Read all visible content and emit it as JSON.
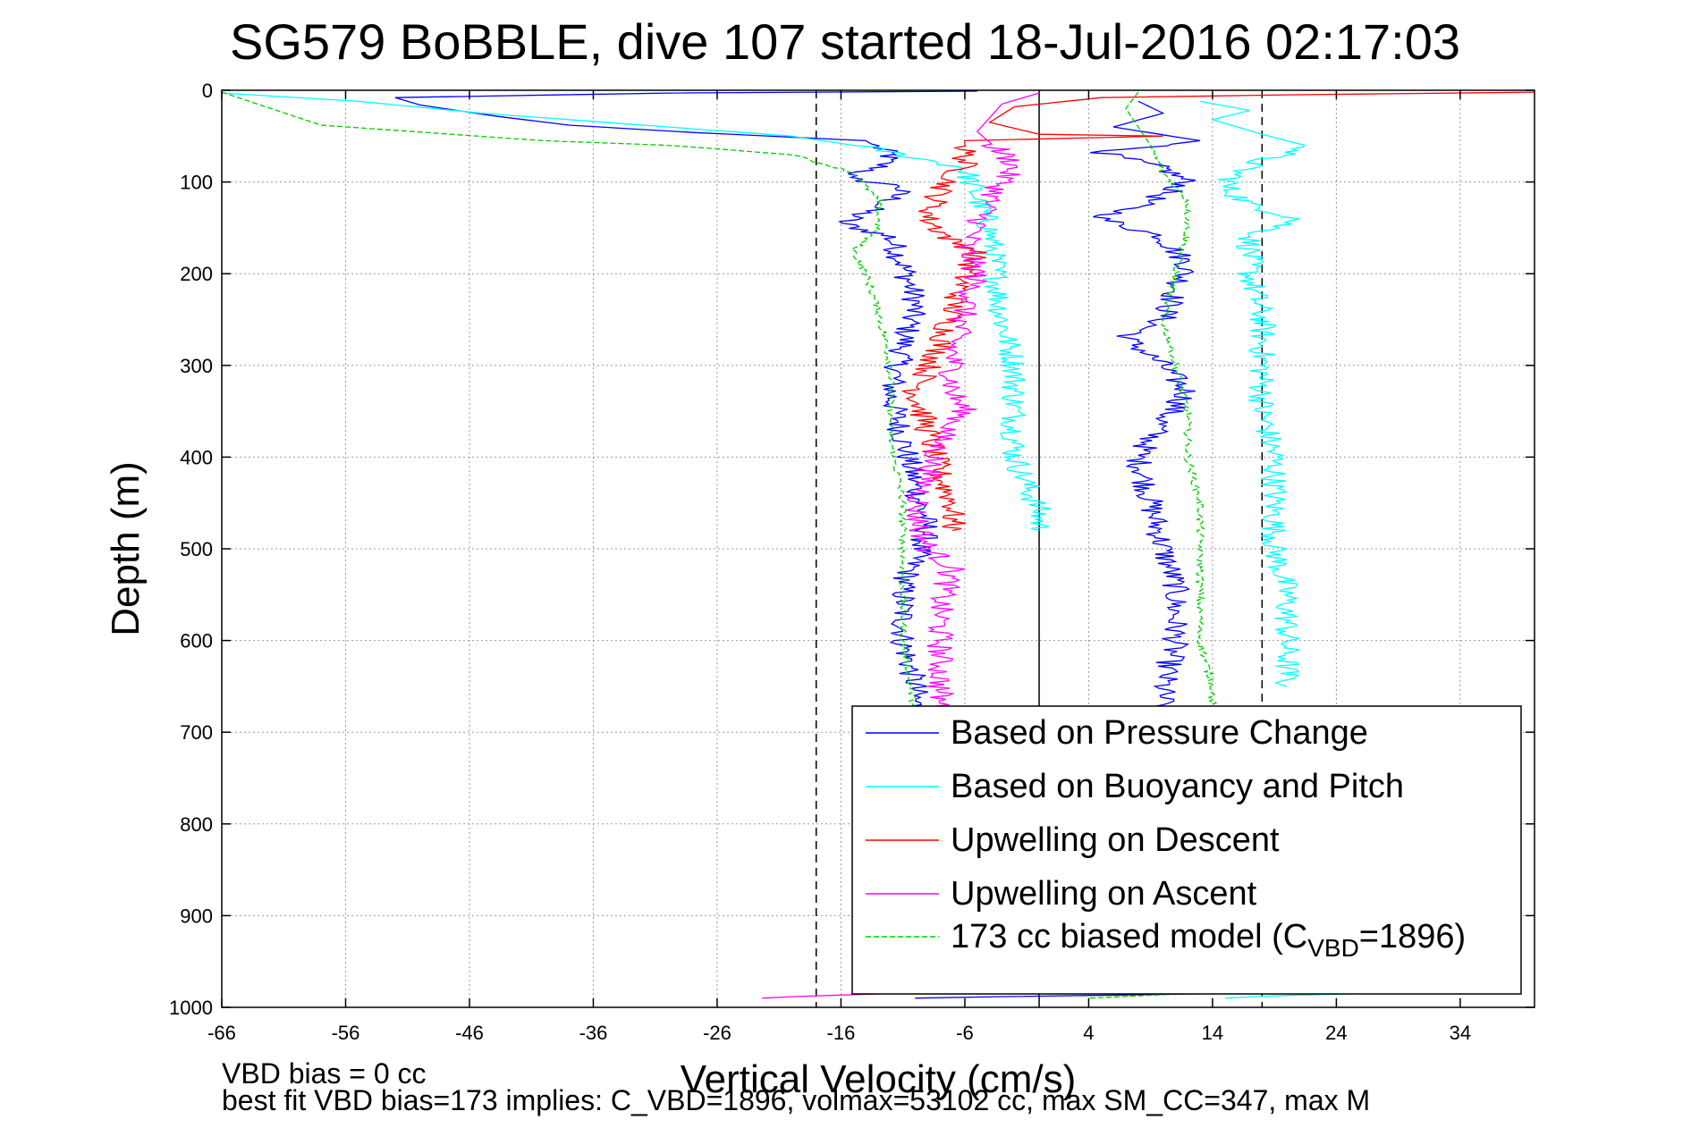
{
  "chart_data": {
    "type": "line",
    "title": "SG579 BoBBLE, dive 107 started 18-Jul-2016 02:17:03",
    "xlabel": "Vertical Velocity (cm/s)",
    "ylabel": "Depth (m)",
    "xlim": [
      -66,
      40
    ],
    "ylim": [
      0,
      1000
    ],
    "y_reversed": true,
    "grid": true,
    "xticks": [
      -66,
      -56,
      -46,
      -36,
      -26,
      -16,
      -6,
      4,
      14,
      24,
      34
    ],
    "yticks": [
      0,
      100,
      200,
      300,
      400,
      500,
      600,
      700,
      800,
      900,
      1000
    ],
    "vlines_dashed": [
      -18,
      18
    ],
    "vlines_solid": [
      0
    ],
    "legend_position": "lower-right",
    "series": [
      {
        "name": "Based on Pressure Change",
        "color": "#0000ff",
        "segments": [
          [
            [
              -5,
              1
            ],
            [
              -30,
              3
            ],
            [
              -52,
              8
            ],
            [
              -50,
              16
            ],
            [
              -44,
              28
            ],
            [
              -38,
              38
            ],
            [
              -28,
              46
            ],
            [
              -14,
              55
            ],
            [
              -12,
              70
            ],
            [
              -13,
              85
            ],
            [
              -16,
              95
            ],
            [
              -11,
              105
            ],
            [
              -12,
              120
            ],
            [
              -16,
              145
            ],
            [
              -12,
              160
            ],
            [
              -11,
              190
            ],
            [
              -10,
              230
            ],
            [
              -11,
              280
            ],
            [
              -12,
              330
            ],
            [
              -11,
              380
            ],
            [
              -10,
              430
            ],
            [
              -9,
              480
            ],
            [
              -11,
              540
            ],
            [
              -11,
              600
            ],
            [
              -10,
              650
            ],
            [
              -10,
              680
            ]
          ],
          [
            [
              8,
              12
            ],
            [
              10,
              25
            ],
            [
              6,
              40
            ],
            [
              13,
              55
            ],
            [
              5,
              68
            ],
            [
              10,
              85
            ],
            [
              12,
              100
            ],
            [
              9,
              120
            ],
            [
              5,
              140
            ],
            [
              10,
              160
            ],
            [
              12,
              190
            ],
            [
              11,
              220
            ],
            [
              10,
              250
            ],
            [
              7,
              270
            ],
            [
              10,
              300
            ],
            [
              12,
              330
            ],
            [
              10,
              360
            ],
            [
              8,
              400
            ],
            [
              9,
              450
            ],
            [
              10,
              500
            ],
            [
              11,
              540
            ],
            [
              11,
              600
            ],
            [
              10,
              650
            ],
            [
              10,
              680
            ]
          ],
          [
            [
              -10,
              990
            ],
            [
              14,
              985
            ]
          ]
        ]
      },
      {
        "name": "Based on Buoyancy and Pitch",
        "color": "#00ffff",
        "segments": [
          [
            [
              -66,
              3
            ],
            [
              -55,
              12
            ],
            [
              -45,
              25
            ],
            [
              -30,
              40
            ],
            [
              -20,
              50
            ],
            [
              -14,
              62
            ],
            [
              -6,
              85
            ],
            [
              -4,
              150
            ],
            [
              -3,
              250
            ],
            [
              -2,
              300
            ],
            [
              -2,
              400
            ],
            [
              0,
              460
            ],
            [
              0,
              480
            ]
          ],
          [
            [
              13,
              12
            ],
            [
              17,
              22
            ],
            [
              14,
              32
            ],
            [
              18,
              48
            ],
            [
              22,
              62
            ],
            [
              18,
              75
            ],
            [
              16,
              90
            ],
            [
              15,
              105
            ],
            [
              17,
              125
            ],
            [
              21,
              140
            ],
            [
              17,
              160
            ],
            [
              17,
              200
            ],
            [
              18,
              250
            ],
            [
              18,
              300
            ],
            [
              18,
              350
            ],
            [
              19,
              400
            ],
            [
              19,
              500
            ],
            [
              20,
              550
            ],
            [
              20,
              600
            ],
            [
              20,
              650
            ]
          ],
          [
            [
              14,
              990
            ],
            [
              26,
              985
            ]
          ]
        ]
      },
      {
        "name": "Upwelling on Descent",
        "color": "#ff0000",
        "segments": [
          [
            [
              40,
              2
            ],
            [
              20,
              5
            ],
            [
              5,
              8
            ],
            [
              -2,
              18
            ],
            [
              -4,
              35
            ],
            [
              0,
              48
            ],
            [
              10,
              50
            ],
            [
              -6,
              55
            ],
            [
              -6,
              80
            ],
            [
              -8,
              110
            ],
            [
              -9,
              140
            ],
            [
              -7,
              165
            ],
            [
              -5,
              175
            ],
            [
              -6,
              200
            ],
            [
              -7,
              240
            ],
            [
              -8,
              280
            ],
            [
              -10,
              330
            ],
            [
              -9,
              370
            ],
            [
              -8,
              420
            ],
            [
              -7,
              450
            ],
            [
              -7,
              480
            ]
          ]
        ]
      },
      {
        "name": "Upwelling on Ascent",
        "color": "#ff00ff",
        "segments": [
          [
            [
              0,
              3
            ],
            [
              -3,
              15
            ],
            [
              -4,
              30
            ],
            [
              -5,
              45
            ],
            [
              -2,
              80
            ],
            [
              -4,
              120
            ],
            [
              -5,
              150
            ],
            [
              -6,
              170
            ],
            [
              -5,
              200
            ],
            [
              -6,
              240
            ],
            [
              -7,
              280
            ],
            [
              -7,
              330
            ],
            [
              -6,
              350
            ],
            [
              -8,
              380
            ],
            [
              -9,
              420
            ],
            [
              -10,
              460
            ],
            [
              -9,
              500
            ],
            [
              -7,
              520
            ],
            [
              -8,
              560
            ],
            [
              -8,
              600
            ],
            [
              -8,
              650
            ],
            [
              -8,
              680
            ]
          ],
          [
            [
              -22,
              990
            ],
            [
              -12,
              985
            ]
          ]
        ]
      },
      {
        "name": "173 cc biased model (C",
        "name_subscript": "VBD",
        "name_suffix": "=1896)",
        "color": "#00cc00",
        "dashed": true,
        "segments": [
          [
            [
              -66,
              2
            ],
            [
              -58,
              38
            ],
            [
              -40,
              55
            ],
            [
              -30,
              60
            ],
            [
              -20,
              70
            ],
            [
              -15,
              90
            ],
            [
              -13,
              120
            ],
            [
              -13,
              150
            ],
            [
              -15,
              175
            ],
            [
              -14,
              200
            ],
            [
              -13,
              240
            ],
            [
              -12,
              300
            ],
            [
              -12,
              380
            ],
            [
              -11,
              450
            ],
            [
              -11,
              520
            ],
            [
              -11,
              600
            ],
            [
              -10,
              680
            ]
          ],
          [
            [
              8,
              2
            ],
            [
              7,
              20
            ],
            [
              9,
              60
            ],
            [
              10,
              90
            ],
            [
              12,
              120
            ],
            [
              12,
              150
            ],
            [
              11,
              200
            ],
            [
              10,
              250
            ],
            [
              11,
              300
            ],
            [
              12,
              350
            ],
            [
              12,
              400
            ],
            [
              13,
              450
            ],
            [
              13,
              500
            ],
            [
              13,
              550
            ],
            [
              13,
              600
            ],
            [
              14,
              650
            ],
            [
              14,
              680
            ]
          ],
          [
            [
              4,
              990
            ],
            [
              12,
              985
            ]
          ]
        ]
      }
    ]
  },
  "footer": {
    "line1": "VBD bias = 0 cc",
    "line2": "best fit VBD bias=173 implies: C_VBD=1896, volmax=53102 cc, max SM_CC=347, max M"
  }
}
